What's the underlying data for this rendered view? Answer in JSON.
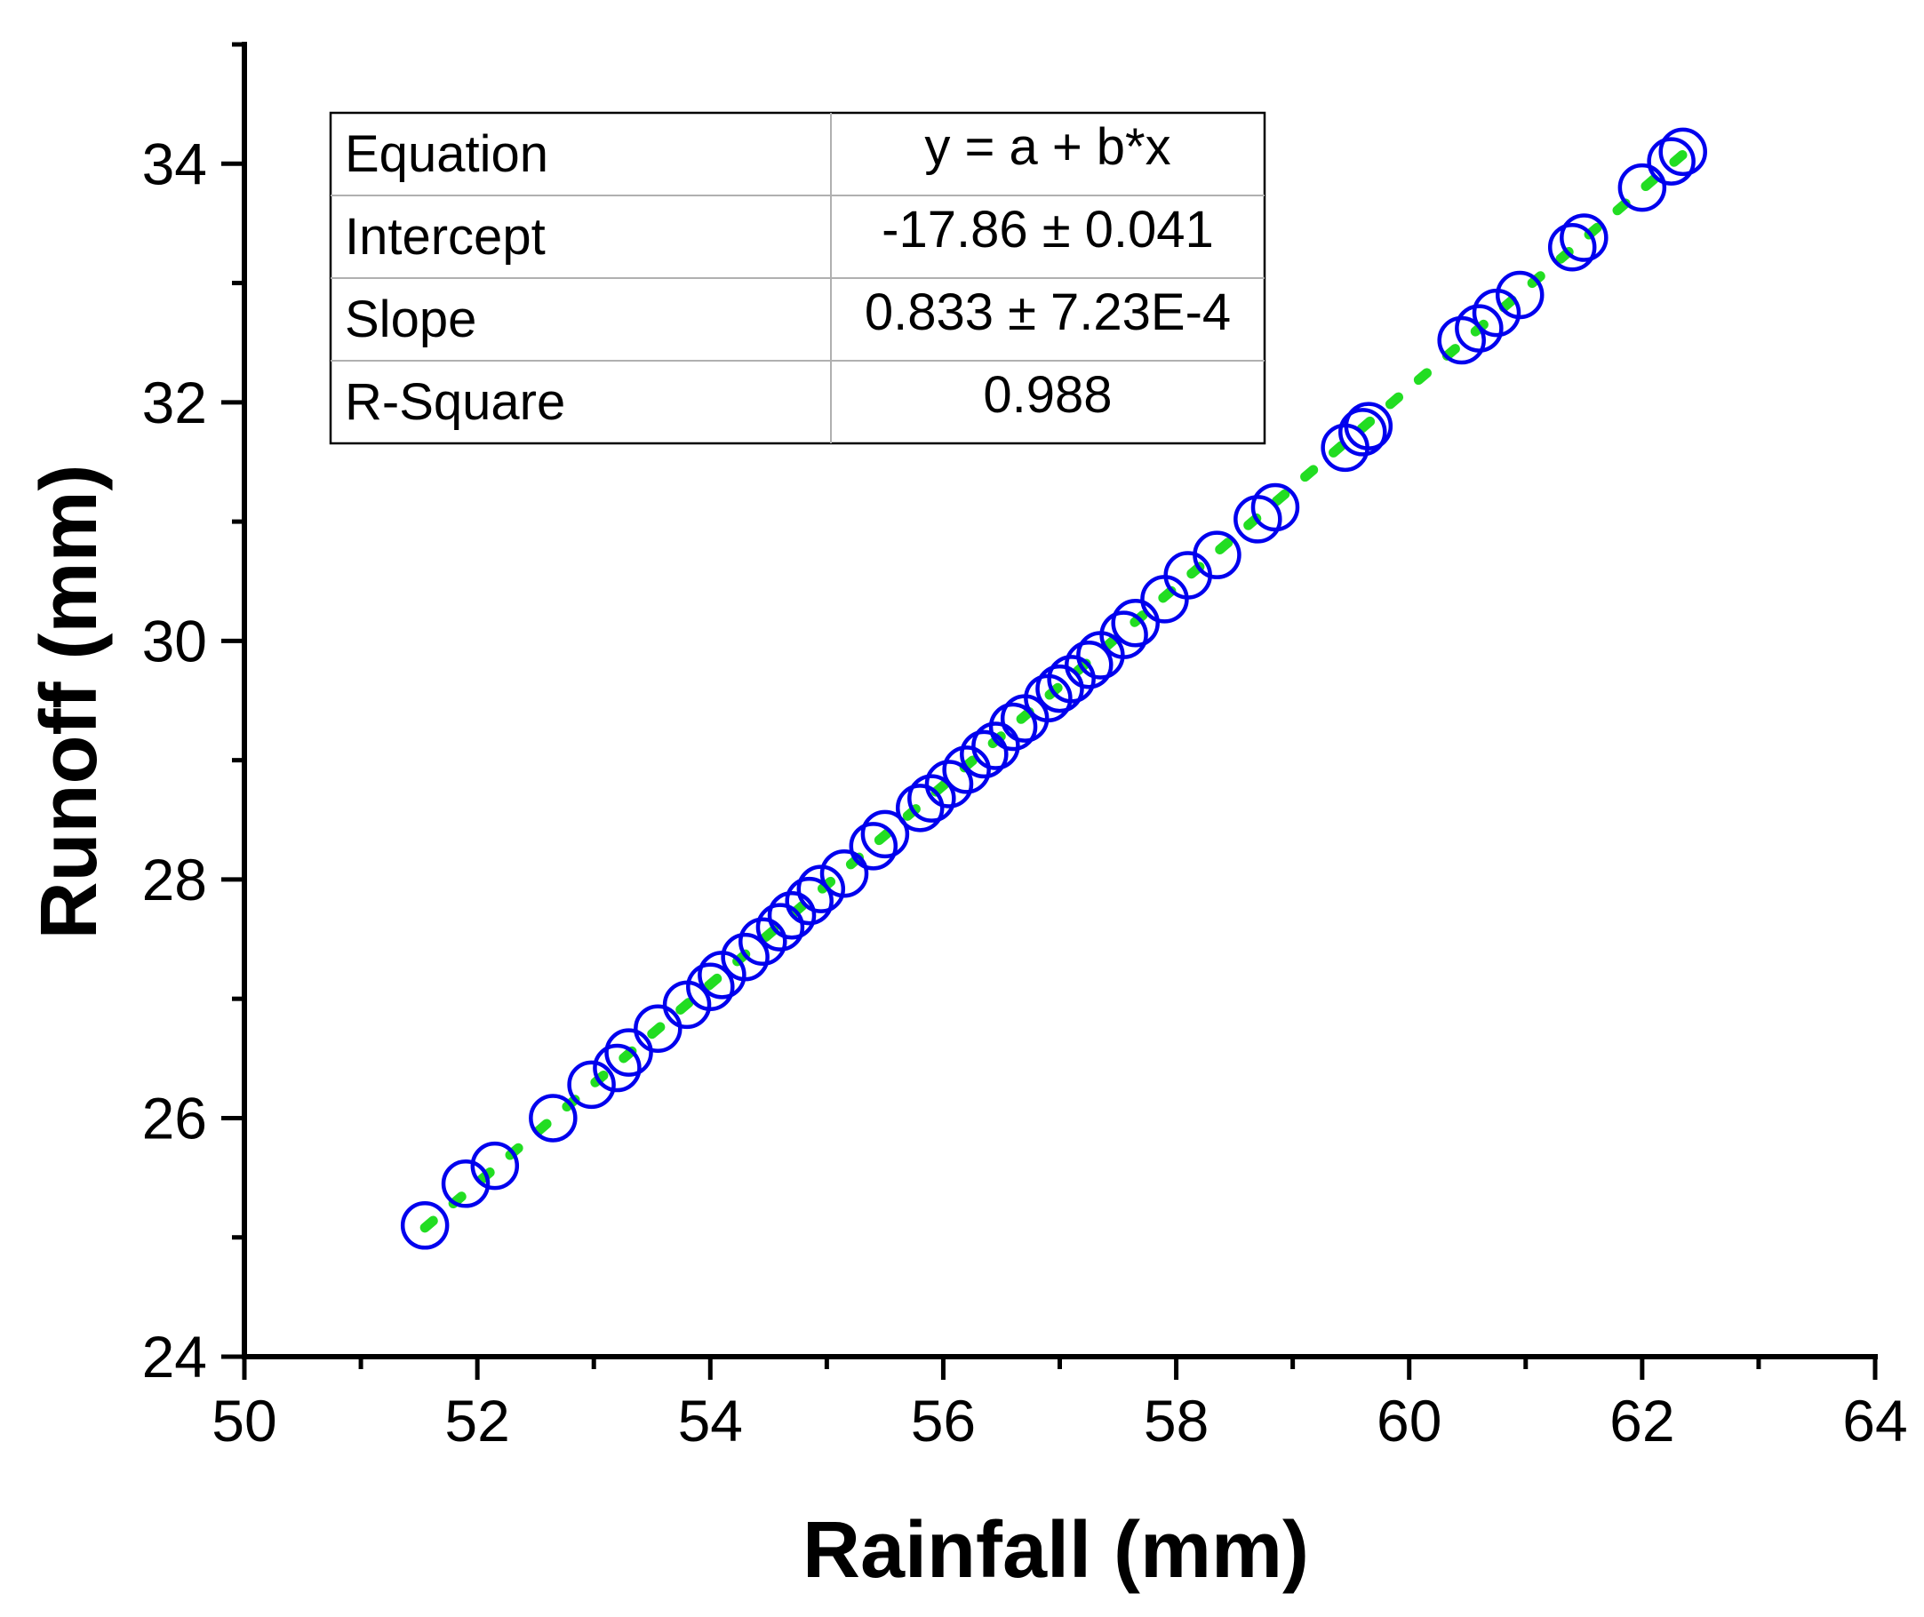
{
  "chart_data": {
    "type": "scatter",
    "xlabel": "Rainfall (mm)",
    "ylabel": "Runoff (mm)",
    "xlim": [
      50,
      64
    ],
    "ylim": [
      24,
      35
    ],
    "xticks": [
      "50",
      "52",
      "54",
      "56",
      "58",
      "60",
      "62",
      "64"
    ],
    "yticks": [
      "24",
      "26",
      "28",
      "30",
      "32",
      "34"
    ],
    "grid": false,
    "marker": "open-circle",
    "series": [
      {
        "x": [
          51.55,
          51.9,
          52.15,
          52.65,
          52.98,
          53.2,
          53.3,
          53.55,
          53.8,
          54.0,
          54.1,
          54.3,
          54.45,
          54.6,
          54.7,
          54.85,
          54.95,
          55.15,
          55.4,
          55.5,
          55.8,
          55.9,
          56.05,
          56.2,
          56.35,
          56.45,
          56.6,
          56.7,
          56.9,
          57.0,
          57.1,
          57.25,
          57.35,
          57.55,
          57.65,
          57.9,
          58.1,
          58.35,
          58.7,
          58.85,
          59.45,
          59.6,
          59.65,
          60.45,
          60.6,
          60.75,
          60.95,
          61.4,
          61.5,
          62.0,
          62.25,
          62.35
        ],
        "y": [
          25.1,
          25.45,
          25.6,
          26.0,
          26.28,
          26.42,
          26.55,
          26.75,
          26.95,
          27.1,
          27.2,
          27.35,
          27.48,
          27.6,
          27.7,
          27.82,
          27.92,
          28.05,
          28.28,
          28.38,
          28.6,
          28.68,
          28.8,
          28.92,
          29.05,
          29.12,
          29.28,
          29.35,
          29.52,
          29.6,
          29.68,
          29.8,
          29.88,
          30.05,
          30.15,
          30.35,
          30.55,
          30.72,
          31.02,
          31.12,
          31.62,
          31.75,
          31.8,
          32.52,
          32.62,
          32.75,
          32.9,
          33.3,
          33.38,
          33.8,
          34.02,
          34.1
        ]
      }
    ],
    "fit_line": {
      "intercept": -17.86,
      "slope": 0.833,
      "x_range": [
        51.55,
        62.35
      ]
    },
    "colors": {
      "marker": "#0000ee",
      "fit_line": "#22dd22",
      "axis": "#000000"
    },
    "stats_table": {
      "rows": [
        [
          "Equation",
          "y = a + b*x"
        ],
        [
          "Intercept",
          "-17.86 ± 0.041"
        ],
        [
          "Slope",
          "0.833 ± 7.23E-4"
        ],
        [
          "R-Square",
          "0.988"
        ]
      ]
    }
  }
}
